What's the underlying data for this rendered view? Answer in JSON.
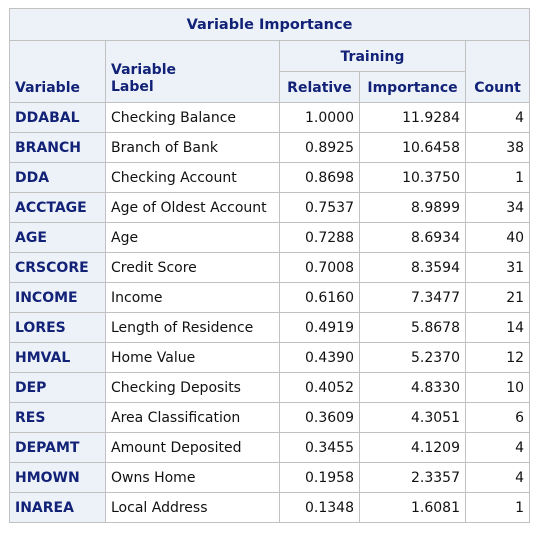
{
  "title": "Variable Importance",
  "headers": {
    "variable": "Variable",
    "variable_label": "Variable\nLabel",
    "training": "Training",
    "relative": "Relative",
    "importance": "Importance",
    "count": "Count"
  },
  "rows": [
    {
      "variable": "DDABAL",
      "label": "Checking Balance",
      "relative": "1.0000",
      "importance": "11.9284",
      "count": "4"
    },
    {
      "variable": "BRANCH",
      "label": "Branch of Bank",
      "relative": "0.8925",
      "importance": "10.6458",
      "count": "38"
    },
    {
      "variable": "DDA",
      "label": "Checking Account",
      "relative": "0.8698",
      "importance": "10.3750",
      "count": "1"
    },
    {
      "variable": "ACCTAGE",
      "label": "Age of Oldest Account",
      "relative": "0.7537",
      "importance": "8.9899",
      "count": "34"
    },
    {
      "variable": "AGE",
      "label": "Age",
      "relative": "0.7288",
      "importance": "8.6934",
      "count": "40"
    },
    {
      "variable": "CRSCORE",
      "label": "Credit Score",
      "relative": "0.7008",
      "importance": "8.3594",
      "count": "31"
    },
    {
      "variable": "INCOME",
      "label": "Income",
      "relative": "0.6160",
      "importance": "7.3477",
      "count": "21"
    },
    {
      "variable": "LORES",
      "label": "Length of Residence",
      "relative": "0.4919",
      "importance": "5.8678",
      "count": "14"
    },
    {
      "variable": "HMVAL",
      "label": "Home Value",
      "relative": "0.4390",
      "importance": "5.2370",
      "count": "12"
    },
    {
      "variable": "DEP",
      "label": "Checking Deposits",
      "relative": "0.4052",
      "importance": "4.8330",
      "count": "10"
    },
    {
      "variable": "RES",
      "label": "Area Classification",
      "relative": "0.3609",
      "importance": "4.3051",
      "count": "6"
    },
    {
      "variable": "DEPAMT",
      "label": "Amount Deposited",
      "relative": "0.3455",
      "importance": "4.1209",
      "count": "4"
    },
    {
      "variable": "HMOWN",
      "label": "Owns Home",
      "relative": "0.1958",
      "importance": "2.3357",
      "count": "4"
    },
    {
      "variable": "INAREA",
      "label": "Local Address",
      "relative": "0.1348",
      "importance": "1.6081",
      "count": "1"
    }
  ]
}
